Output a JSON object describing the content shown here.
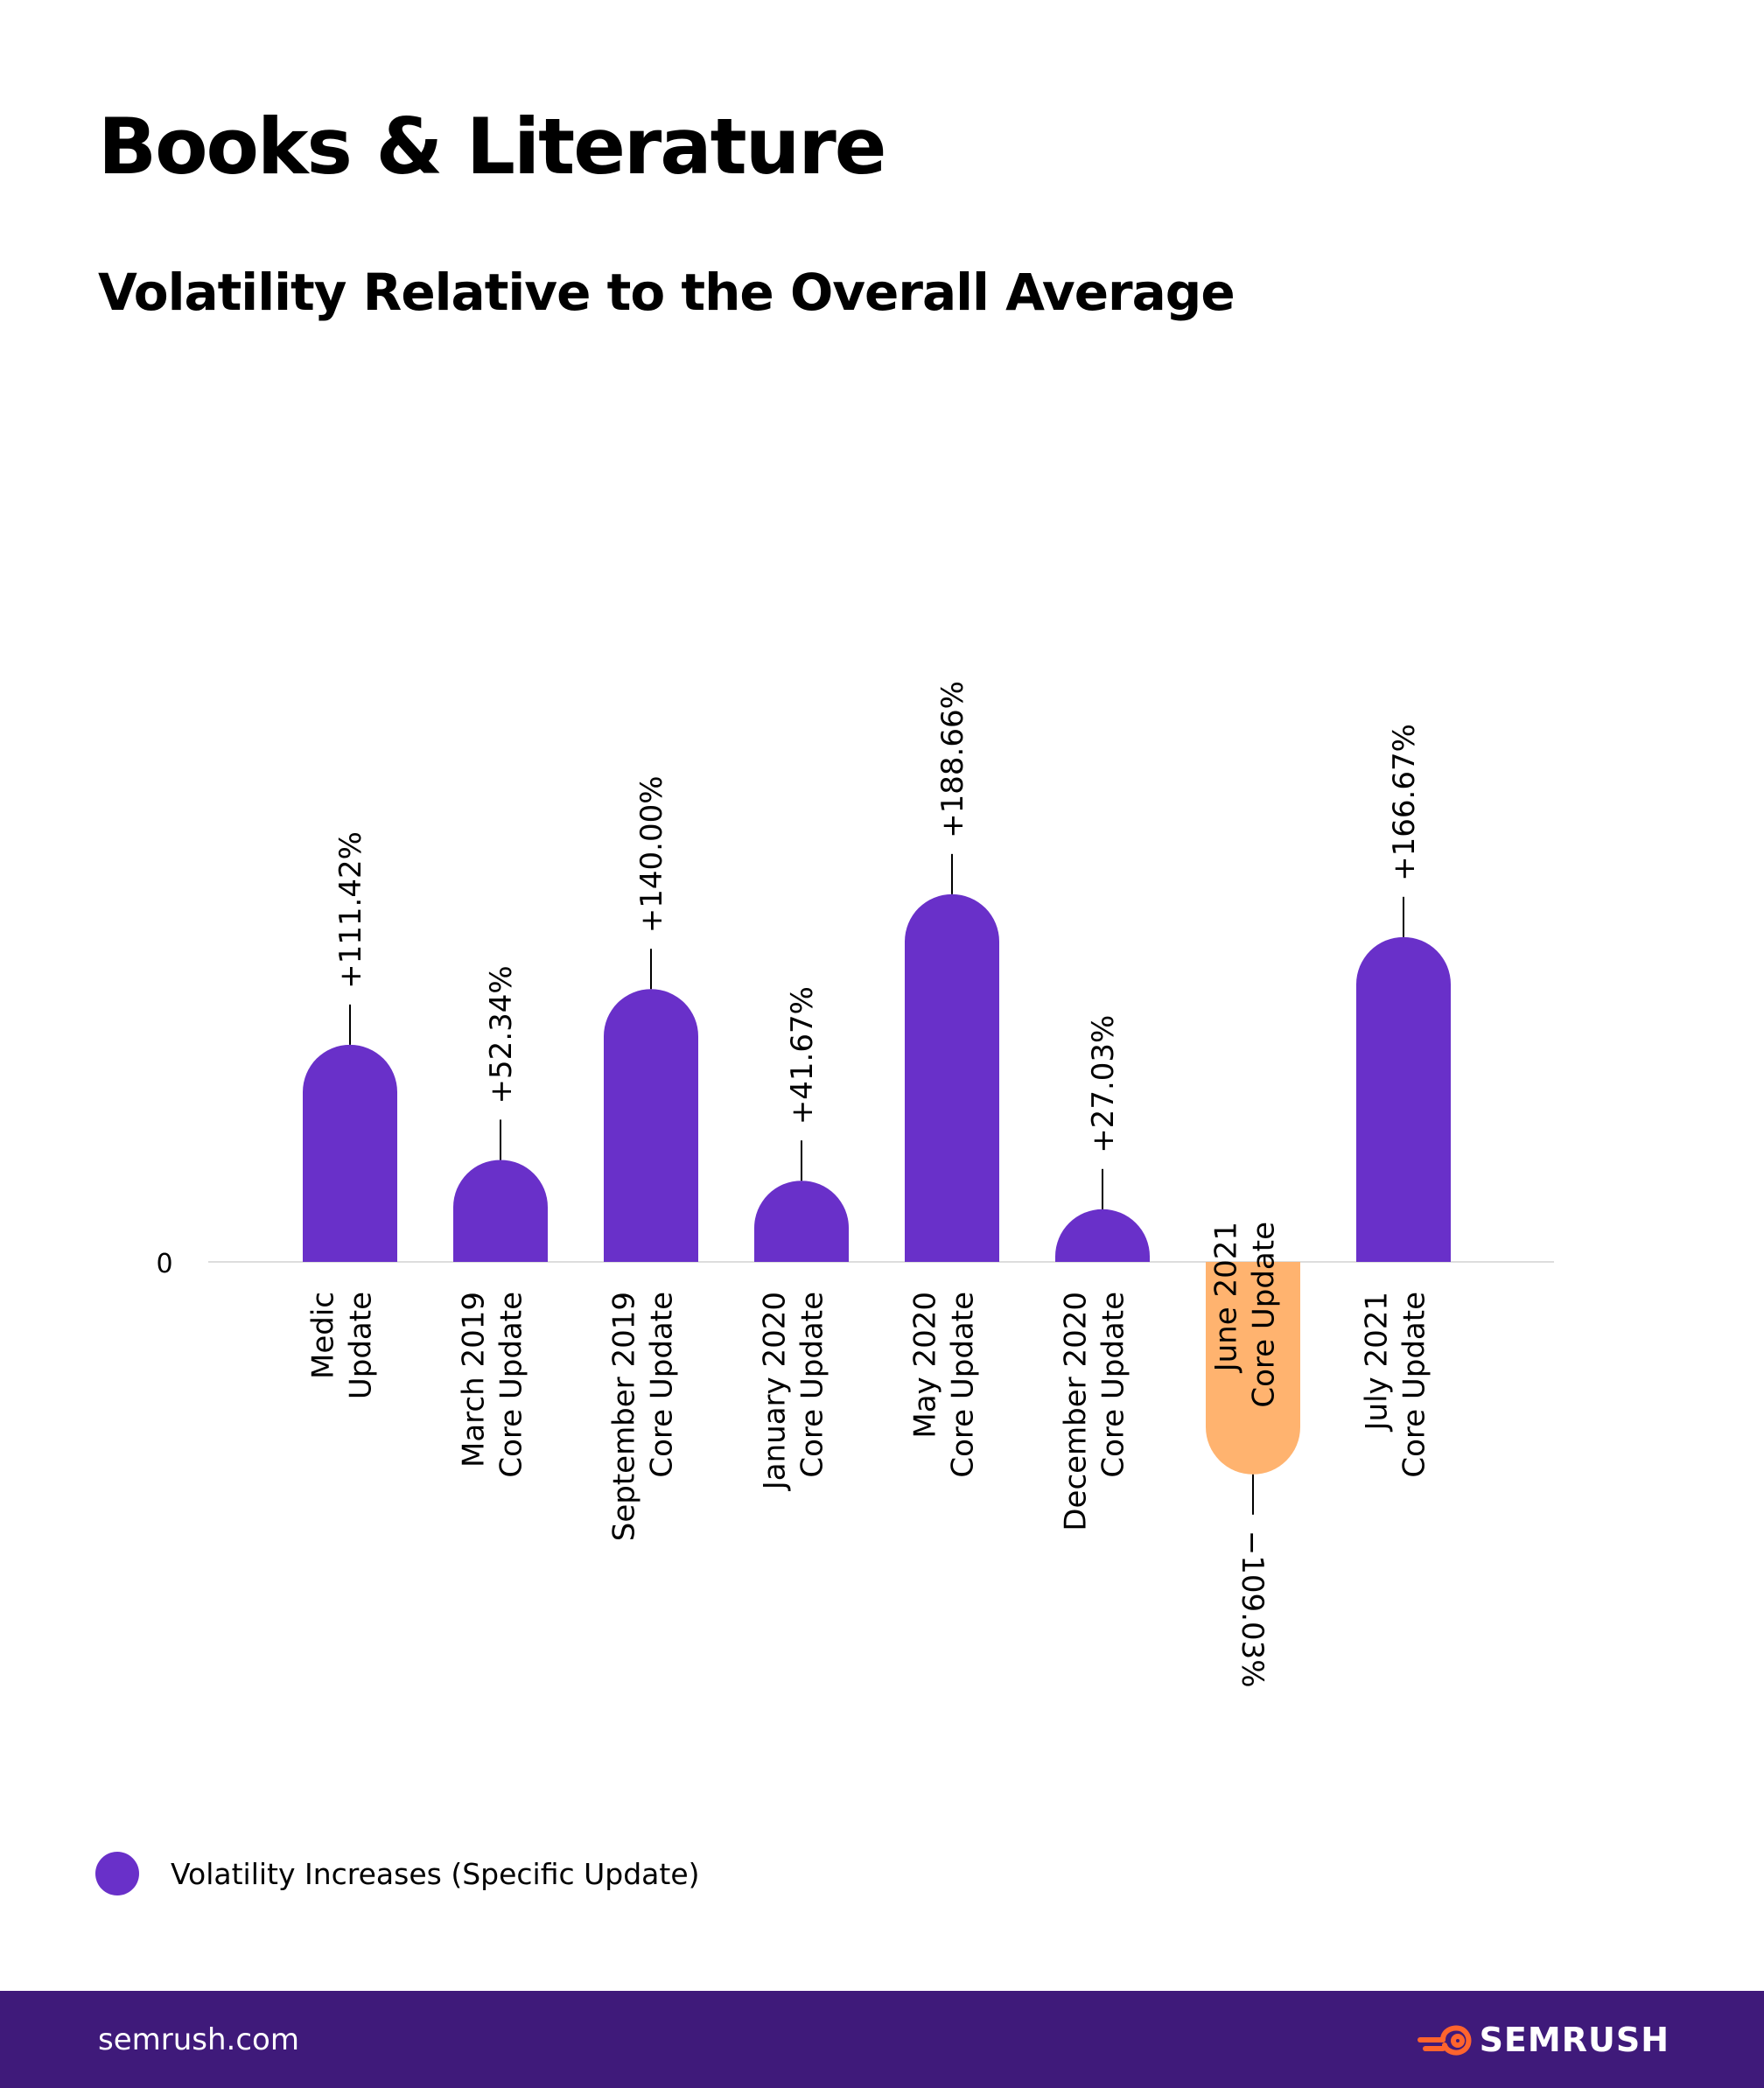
{
  "title": "Books & Literature",
  "subtitle": "Volatility Relative to the Overall Average",
  "colors": {
    "positive": "#6930c9",
    "negative": "#ffb36f",
    "footer_bg": "#3f1a7a",
    "brand_orange": "#ff642d",
    "axis": "#dddddd"
  },
  "legend": {
    "label": "Volatility Increases (Specific Update)",
    "icon": "dot-icon"
  },
  "footer": {
    "site": "semrush.com",
    "brand": "SEMRUSH",
    "logo_icon": "semrush-fire-icon"
  },
  "chart_data": {
    "type": "bar",
    "title": "Volatility Relative to the Overall Average",
    "xlabel": "",
    "ylabel": "",
    "zero_label": "0",
    "categories": [
      [
        "Medic",
        "Update"
      ],
      [
        "March 2019",
        "Core Update"
      ],
      [
        "September 2019",
        "Core Update"
      ],
      [
        "January 2020",
        "Core Update"
      ],
      [
        "May 2020",
        "Core Update"
      ],
      [
        "December 2020",
        "Core Update"
      ],
      [
        "June 2021",
        "Core Update"
      ],
      [
        "July 2021",
        "Core Update"
      ]
    ],
    "values": [
      111.42,
      52.34,
      140.0,
      41.67,
      188.66,
      27.03,
      -109.03,
      166.67
    ],
    "value_labels": [
      "+111.42%",
      "+52.34%",
      "+140.00%",
      "+41.67%",
      "+188.66%",
      "+27.03%",
      "−109.03%",
      "+166.67%"
    ],
    "grid": false,
    "legend_position": "bottom-left"
  }
}
